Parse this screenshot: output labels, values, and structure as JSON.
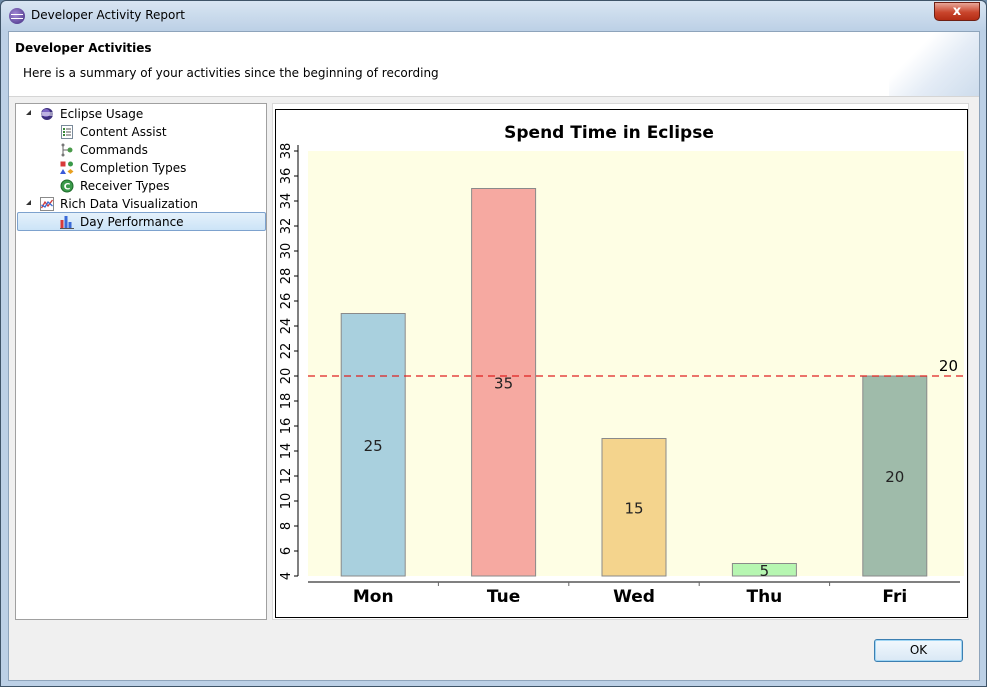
{
  "window": {
    "title": "Developer Activity Report",
    "close_glyph": "x"
  },
  "header": {
    "title": "Developer Activities",
    "description": "Here is a summary of your activities since the beginning of recording"
  },
  "tree": {
    "items": [
      {
        "label": "Eclipse Usage",
        "icon": "eclipse-icon",
        "expanded": true
      },
      {
        "label": "Content Assist",
        "icon": "content-assist-icon"
      },
      {
        "label": "Commands",
        "icon": "commands-icon"
      },
      {
        "label": "Completion Types",
        "icon": "completion-types-icon"
      },
      {
        "label": "Receiver Types",
        "icon": "receiver-types-icon"
      },
      {
        "label": "Rich Data Visualization",
        "icon": "chart-line-icon",
        "expanded": true
      },
      {
        "label": "Day Performance",
        "icon": "bar-chart-icon",
        "selected": true
      }
    ]
  },
  "chart_data": {
    "type": "bar",
    "title": "Spend Time in Eclipse",
    "categories": [
      "Mon",
      "Tue",
      "Wed",
      "Thu",
      "Fri"
    ],
    "values": [
      25,
      35,
      15,
      5,
      20
    ],
    "colors": [
      "#a9d0de",
      "#f6a9a1",
      "#f4d48d",
      "#b6f6b1",
      "#9fbbaa"
    ],
    "ylim": [
      4,
      38
    ],
    "y_ticks": [
      "4",
      "6",
      "8",
      "10",
      "12",
      "14",
      "16",
      "18",
      "20",
      "22",
      "24",
      "26",
      "28",
      "30",
      "32",
      "34",
      "36",
      "38"
    ],
    "reference_line": {
      "value": 20,
      "label": "20",
      "color": "#e02020"
    },
    "plot_background": "#fefee4",
    "grid": false
  },
  "buttons": {
    "ok_label": "OK"
  }
}
